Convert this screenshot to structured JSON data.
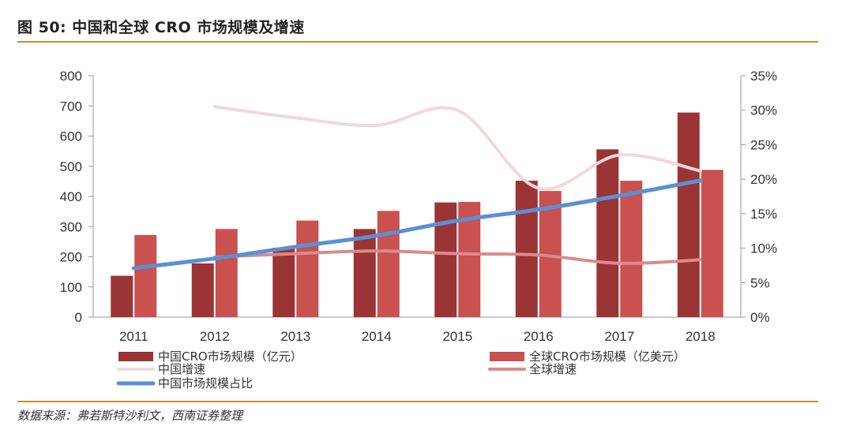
{
  "header": {
    "title": "图 50:  中国和全球 CRO 市场规模及增速"
  },
  "footer": {
    "source": "数据来源：弗若斯特沙利文，西南证券整理"
  },
  "chart_data": {
    "type": "bar",
    "categories": [
      "2011",
      "2012",
      "2013",
      "2014",
      "2015",
      "2016",
      "2017",
      "2018"
    ],
    "series": [
      {
        "name": "中国CRO市场规模（亿元）",
        "axis": "left",
        "kind": "bar",
        "color": "#9b3434",
        "values": [
          137,
          178,
          230,
          292,
          380,
          452,
          556,
          678
        ]
      },
      {
        "name": "全球CRO市场规模（亿美元）",
        "axis": "left",
        "kind": "bar",
        "color": "#c9514f",
        "values": [
          272,
          292,
          320,
          352,
          382,
          418,
          452,
          488
        ]
      },
      {
        "name": "中国增速",
        "axis": "right",
        "kind": "line",
        "color": "#f2d8d8",
        "values": [
          null,
          0.305,
          0.289,
          0.278,
          0.3,
          0.187,
          0.235,
          0.212
        ]
      },
      {
        "name": "全球增速",
        "axis": "right",
        "kind": "line",
        "color": "#d98b8b",
        "values": [
          null,
          0.087,
          0.092,
          0.096,
          0.092,
          0.09,
          0.078,
          0.083
        ]
      },
      {
        "name": "中国市场规模占比",
        "axis": "right",
        "kind": "line",
        "color": "#5b8fd6",
        "values": [
          0.071,
          0.085,
          0.102,
          0.118,
          0.14,
          0.156,
          0.176,
          0.198
        ]
      }
    ],
    "y_left": {
      "min": 0,
      "max": 800,
      "ticks": [
        "0",
        "100",
        "200",
        "300",
        "400",
        "500",
        "600",
        "700",
        "800"
      ]
    },
    "y_right": {
      "min": 0,
      "max": 0.35,
      "ticks": [
        "0%",
        "5%",
        "10%",
        "15%",
        "20%",
        "25%",
        "30%",
        "35%"
      ]
    },
    "grid": false,
    "legend_position": "bottom"
  }
}
